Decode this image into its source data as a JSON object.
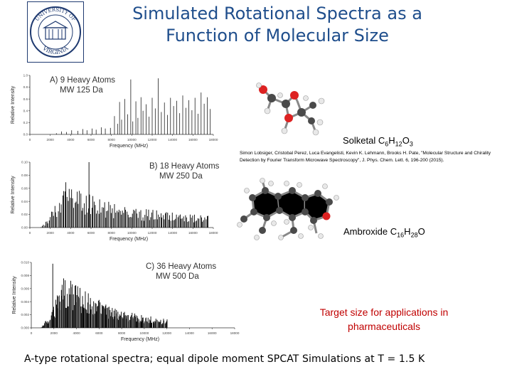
{
  "slide": {
    "title_line1": "Simulated Rotational Spectra as a",
    "title_line2": "Function of Molecular Size",
    "seal_text_top": "UNIVERSITY OF",
    "seal_text_bottom": "VIRGINIA",
    "reference": "Simon Lobsiger, Cristobal Perez, Luca Evangelisti, Kevin K. Lehmann, Brooks H. Pate, \"Molecular Structure and Chirality Detection by Fourier Transform Microwave Spectroscopy\", J. Phys. Chem. Lett. 6, 196-200 (2015).",
    "target": "Target size for applications in pharmaceuticals",
    "footer": "A-type rotational spectra; equal dipole moment SPCAT Simulations at T = 1.5 K",
    "colors": {
      "title": "#1f4e8c",
      "target": "#c00000",
      "spectrum": "#000000"
    }
  },
  "molecules": [
    {
      "name": "Solketal",
      "formula": [
        {
          "t": "C"
        },
        {
          "s": "6"
        },
        {
          "t": "H"
        },
        {
          "s": "12"
        },
        {
          "t": "O"
        },
        {
          "s": "3"
        }
      ]
    },
    {
      "name": "Ambroxide",
      "formula": [
        {
          "t": "C"
        },
        {
          "s": "16"
        },
        {
          "t": "H"
        },
        {
          "s": "28"
        },
        {
          "t": "O"
        }
      ]
    }
  ],
  "chart_data": [
    {
      "type": "bar",
      "label_line1": "A) 9 Heavy Atoms",
      "label_line2": "MW 125 Da",
      "xlabel": "Frequency (MHz)",
      "ylabel": "Relative Intensity",
      "xlim": [
        0,
        18000
      ],
      "ylim": [
        0,
        1.0
      ],
      "xticks": [
        "0",
        "2000",
        "4000",
        "6000",
        "8000",
        "10000",
        "12000",
        "14000",
        "16000",
        "18000"
      ],
      "yticks": [
        "0.0",
        "0.2",
        "0.4",
        "0.6",
        "0.8",
        "1.0"
      ],
      "lines": [
        {
          "x": 2600,
          "y": 0.02
        },
        {
          "x": 3100,
          "y": 0.05
        },
        {
          "x": 3600,
          "y": 0.04
        },
        {
          "x": 4100,
          "y": 0.07
        },
        {
          "x": 4700,
          "y": 0.06
        },
        {
          "x": 5200,
          "y": 0.09
        },
        {
          "x": 5600,
          "y": 0.07
        },
        {
          "x": 6100,
          "y": 0.1
        },
        {
          "x": 6500,
          "y": 0.08
        },
        {
          "x": 7000,
          "y": 0.12
        },
        {
          "x": 7400,
          "y": 0.1
        },
        {
          "x": 7900,
          "y": 0.11
        },
        {
          "x": 8300,
          "y": 0.31
        },
        {
          "x": 8600,
          "y": 0.18
        },
        {
          "x": 8800,
          "y": 0.55
        },
        {
          "x": 9000,
          "y": 0.25
        },
        {
          "x": 9300,
          "y": 0.6
        },
        {
          "x": 9600,
          "y": 0.34
        },
        {
          "x": 9900,
          "y": 0.93
        },
        {
          "x": 10100,
          "y": 0.22
        },
        {
          "x": 10400,
          "y": 0.56
        },
        {
          "x": 10600,
          "y": 0.28
        },
        {
          "x": 10900,
          "y": 0.63
        },
        {
          "x": 11100,
          "y": 0.4
        },
        {
          "x": 11400,
          "y": 0.51
        },
        {
          "x": 11700,
          "y": 0.3
        },
        {
          "x": 12000,
          "y": 0.62
        },
        {
          "x": 12300,
          "y": 0.44
        },
        {
          "x": 12600,
          "y": 0.95
        },
        {
          "x": 12900,
          "y": 0.38
        },
        {
          "x": 13200,
          "y": 0.54
        },
        {
          "x": 13500,
          "y": 0.33
        },
        {
          "x": 13800,
          "y": 0.62
        },
        {
          "x": 14100,
          "y": 0.48
        },
        {
          "x": 14400,
          "y": 0.57
        },
        {
          "x": 14700,
          "y": 0.36
        },
        {
          "x": 15000,
          "y": 0.66
        },
        {
          "x": 15300,
          "y": 0.45
        },
        {
          "x": 15600,
          "y": 0.58
        },
        {
          "x": 15900,
          "y": 0.41
        },
        {
          "x": 16200,
          "y": 0.62
        },
        {
          "x": 16500,
          "y": 0.35
        },
        {
          "x": 16800,
          "y": 0.71
        },
        {
          "x": 17100,
          "y": 0.52
        },
        {
          "x": 17400,
          "y": 0.63
        },
        {
          "x": 17700,
          "y": 0.43
        }
      ]
    },
    {
      "type": "bar",
      "label_line1": "B) 18 Heavy Atoms",
      "label_line2": "MW 250 Da",
      "xlabel": "Frequency (MHz)",
      "ylabel": "Relative Intensity",
      "xlim": [
        0,
        18000
      ],
      "ylim": [
        0,
        0.1
      ],
      "xticks": [
        "0",
        "2000",
        "4000",
        "6000",
        "8000",
        "10000",
        "12000",
        "14000",
        "16000",
        "18000"
      ],
      "yticks": [
        "0.00",
        "0.02",
        "0.04",
        "0.06",
        "0.08",
        "0.10"
      ],
      "envelope": {
        "start": 1000,
        "rise_end": 3500,
        "peak_y": 0.07,
        "decay_end": 17500,
        "end_y": 0.012,
        "count": 150,
        "tall_peak": {
          "x": 5800,
          "y": 0.1
        }
      }
    },
    {
      "type": "bar",
      "label_line1": "C) 36 Heavy Atoms",
      "label_line2": "MW 500 Da",
      "xlabel": "Frequency (MHz)",
      "ylabel": "Relative Intensity",
      "xlim": [
        0,
        18000
      ],
      "ylim": [
        0,
        0.01
      ],
      "xticks": [
        "0",
        "2000",
        "4000",
        "6000",
        "8000",
        "10000",
        "12000",
        "14000",
        "16000",
        "18000"
      ],
      "yticks": [
        "0.000",
        "0.002",
        "0.004",
        "0.006",
        "0.008",
        "0.010"
      ],
      "envelope": {
        "start": 800,
        "rise_end": 3000,
        "peak_y": 0.0085,
        "decay_end": 12000,
        "end_y": 0.0005,
        "count": 190,
        "tall_peak": {
          "x": 1900,
          "y": 0.0098
        }
      }
    }
  ]
}
